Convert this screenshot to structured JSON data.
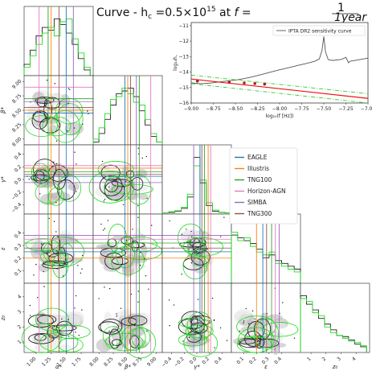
{
  "title": {
    "prefix": "Curve - h",
    "sub": "c",
    "eq": " =0.5×10",
    "exp": "15",
    "mid": " at ",
    "var": "f",
    "eq2": " =",
    "frac_num": "1",
    "frac_den": "1year"
  },
  "colors": {
    "black": "#222222",
    "green": "#22dd22",
    "fill_dark": "#bbbbbb",
    "fill_light": "#e8e8e8",
    "red": "#ee1111",
    "green_dash": "#33cc33",
    "marker": "#b71c1c",
    "pta_curve": "#555555"
  },
  "legend": [
    {
      "label": "EAGLE",
      "color": "#1f77b4"
    },
    {
      "label": "Illustris",
      "color": "#ff7f0e"
    },
    {
      "label": "TNG100",
      "color": "#2ca02c"
    },
    {
      "label": "Horizon-AGN",
      "color": "#e377c2"
    },
    {
      "label": "SIMBA",
      "color": "#9467bd"
    },
    {
      "label": "TNG300",
      "color": "#8c564b"
    }
  ],
  "chart_data": [
    {
      "type": "corner",
      "parameters": [
        {
          "label": "α*",
          "range": [
            0.8,
            1.95
          ],
          "ticks": [
            1.0,
            1.25,
            1.5,
            1.75
          ],
          "tick_labels": [
            "1.00",
            "1.25",
            "1.50",
            "1.75"
          ]
        },
        {
          "label": "β*",
          "range": [
            7.9,
            9.1
          ],
          "ticks": [
            8.0,
            8.25,
            8.5,
            8.75,
            9.0
          ],
          "tick_labels": [
            "8.00",
            "8.25",
            "8.50",
            "8.75",
            "9.00"
          ]
        },
        {
          "label": "γ*",
          "range": [
            -0.55,
            0.55
          ],
          "ticks": [
            -0.4,
            -0.2,
            0.0,
            0.2,
            0.4
          ],
          "tick_labels": [
            "−0.4",
            "−0.2",
            "0.0",
            "0.2",
            "0.4"
          ]
        },
        {
          "label": "ε",
          "range": [
            0.0,
            0.55
          ],
          "ticks": [
            0.1,
            0.2,
            0.3,
            0.4
          ],
          "tick_labels": [
            "0.1",
            "0.2",
            "0.3",
            "0.4"
          ]
        },
        {
          "label": "z₀",
          "range": [
            0.3,
            4.9
          ],
          "ticks": [
            1,
            2,
            3,
            4
          ],
          "tick_labels": [
            "1",
            "2",
            "3",
            "4"
          ]
        }
      ],
      "marginals": [
        {
          "parameter": "α*",
          "x": [
            0.85,
            0.95,
            1.05,
            1.15,
            1.25,
            1.35,
            1.45,
            1.55,
            1.65,
            1.75,
            1.85
          ],
          "black": [
            0.2,
            0.45,
            0.7,
            0.85,
            0.8,
            1.0,
            0.9,
            0.75,
            0.55,
            0.3,
            0.1
          ],
          "green": [
            0.15,
            0.35,
            0.55,
            0.75,
            0.85,
            0.7,
            0.95,
            1.0,
            0.65,
            0.4,
            0.15
          ]
        },
        {
          "parameter": "β*",
          "x": [
            7.95,
            8.05,
            8.15,
            8.25,
            8.35,
            8.45,
            8.55,
            8.65,
            8.75,
            8.85,
            8.95,
            9.05
          ],
          "black": [
            0.05,
            0.2,
            0.45,
            0.7,
            0.9,
            0.95,
            1.0,
            0.85,
            0.6,
            0.35,
            0.15,
            0.05
          ],
          "green": [
            0.1,
            0.3,
            0.55,
            0.8,
            0.85,
            1.0,
            0.9,
            0.75,
            0.7,
            0.45,
            0.2,
            0.05
          ]
        },
        {
          "parameter": "γ*",
          "x": [
            -0.5,
            -0.4,
            -0.3,
            -0.2,
            -0.1,
            0.0,
            0.1,
            0.2,
            0.3,
            0.4,
            0.5
          ],
          "black": [
            0.02,
            0.03,
            0.05,
            0.1,
            0.3,
            1.0,
            0.55,
            0.15,
            0.05,
            0.03,
            0.02
          ],
          "green": [
            0.02,
            0.04,
            0.06,
            0.12,
            0.35,
            0.85,
            0.6,
            0.2,
            0.07,
            0.03,
            0.02
          ]
        },
        {
          "parameter": "ε",
          "x": [
            0.025,
            0.075,
            0.125,
            0.175,
            0.225,
            0.275,
            0.325,
            0.375,
            0.425,
            0.475,
            0.525
          ],
          "black": [
            0.85,
            0.8,
            0.75,
            0.7,
            0.6,
            0.45,
            0.5,
            0.4,
            0.35,
            0.3,
            0.25
          ],
          "green": [
            0.9,
            0.75,
            0.8,
            0.65,
            0.55,
            0.5,
            0.55,
            0.35,
            0.3,
            0.25,
            0.2
          ]
        },
        {
          "parameter": "z₀",
          "x": [
            0.5,
            0.9,
            1.3,
            1.7,
            2.1,
            2.5,
            2.9,
            3.3,
            3.7,
            4.1,
            4.5
          ],
          "black": [
            1.0,
            0.85,
            0.75,
            0.6,
            0.5,
            0.4,
            0.3,
            0.28,
            0.22,
            0.15,
            0.1
          ],
          "green": [
            0.95,
            0.9,
            0.7,
            0.65,
            0.45,
            0.35,
            0.3,
            0.25,
            0.2,
            0.18,
            0.12
          ]
        }
      ],
      "simulation_values": {
        "EAGLE": {
          "α*": 1.5,
          "β*": 8.45,
          "γ*": 0.05,
          "ε": 0.25,
          "z₀": null
        },
        "Illustris": {
          "α*": 1.25,
          "β*": 8.5,
          "γ*": 0.18,
          "ε": 0.2,
          "z₀": null
        },
        "TNG100": {
          "α*": 1.2,
          "β*": 8.7,
          "γ*": 0.12,
          "ε": 0.32,
          "z₀": null
        },
        "Horizon-AGN": {
          "α*": 1.05,
          "β*": 8.9,
          "γ*": 0.22,
          "ε": 0.35,
          "z₀": null
        },
        "SIMBA": {
          "α*": 1.62,
          "β*": 8.65,
          "γ*": -0.05,
          "ε": 0.38,
          "z₀": null
        },
        "TNG300": {
          "α*": 1.38,
          "β*": 8.55,
          "γ*": 0.08,
          "ε": 0.28,
          "z₀": null
        }
      },
      "grid": false
    },
    {
      "type": "line",
      "xlabel": "log₁₀(f [Hz])",
      "ylabel": "log₁₀h꜀",
      "xlim": [
        -9.0,
        -7.0
      ],
      "ylim": [
        -16.0,
        -10.8
      ],
      "xticks": [
        -9.0,
        -8.75,
        -8.5,
        -8.25,
        -8.0,
        -7.75,
        -7.5,
        -7.25,
        -7.0
      ],
      "xtick_labels": [
        "−9.00",
        "−8.75",
        "−8.50",
        "−8.25",
        "−8.00",
        "−7.75",
        "−7.50",
        "−7.25",
        "−7.00"
      ],
      "yticks": [
        -16,
        -15,
        -14,
        -13,
        -12,
        -11
      ],
      "ytick_labels": [
        "−16",
        "−15",
        "−14",
        "−13",
        "−12",
        "−11"
      ],
      "legend_position": "top-right",
      "series": [
        {
          "name": "IPTA DR2 sensitivity curve",
          "x": [
            -9.0,
            -8.9,
            -8.8,
            -8.7,
            -8.6,
            -8.5,
            -8.4,
            -8.3,
            -8.2,
            -8.1,
            -8.0,
            -7.9,
            -7.8,
            -7.7,
            -7.6,
            -7.55,
            -7.52,
            -7.5,
            -7.48,
            -7.45,
            -7.4,
            -7.3,
            -7.25,
            -7.22,
            -7.2,
            -7.1,
            -7.0
          ],
          "y": [
            -14.7,
            -14.75,
            -14.72,
            -14.65,
            -14.58,
            -14.52,
            -14.42,
            -14.3,
            -14.15,
            -14.0,
            -13.85,
            -13.72,
            -13.58,
            -13.45,
            -13.3,
            -13.15,
            -12.6,
            -11.7,
            -12.7,
            -13.2,
            -13.25,
            -13.18,
            -13.05,
            -13.4,
            -13.3,
            -13.2,
            -13.1
          ]
        },
        {
          "x": [
            -9.0,
            -7.0
          ],
          "y": [
            -14.45,
            -15.7
          ]
        },
        {
          "x": [
            -9.0,
            -7.0
          ],
          "y": [
            -14.2,
            -15.4
          ]
        },
        {
          "x": [
            -9.0,
            -7.0
          ],
          "y": [
            -14.75,
            -16.0
          ]
        }
      ],
      "markers": {
        "x": [
          -8.93,
          -8.57,
          -8.4,
          -8.28,
          -8.17
        ],
        "y": [
          -14.58,
          -14.66,
          -14.7,
          -14.74,
          -14.78
        ]
      }
    }
  ]
}
